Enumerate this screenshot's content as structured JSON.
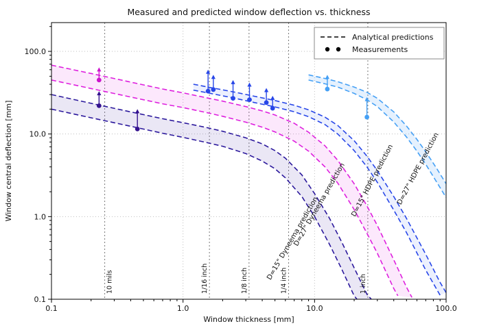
{
  "figure": {
    "title": "Measured and predicted window deflection vs. thickness",
    "xlabel": "Window thickness [mm]",
    "ylabel": "Window central deflection [mm]"
  },
  "chart_data": {
    "type": "line",
    "title": "Measured and predicted window deflection vs. thickness",
    "xlabel": "Window thickness [mm]",
    "ylabel": "Window central deflection [mm]",
    "x_scale": "log",
    "y_scale": "log",
    "xlim": [
      0.1,
      100
    ],
    "ylim": [
      0.1,
      223
    ],
    "grid": true,
    "x_ticks": [
      0.1,
      1,
      10,
      100
    ],
    "x_tick_labels": [
      "0.1",
      "1.0",
      "10.0",
      "100.0"
    ],
    "y_ticks": [
      0.1,
      1,
      10,
      100
    ],
    "y_tick_labels": [
      "0.1",
      "1.0",
      "10.0",
      "100.0"
    ],
    "legend": {
      "position": "upper-right",
      "entries": [
        {
          "label": "Analytical predictions",
          "type": "dashed-line"
        },
        {
          "label": "Measurements",
          "type": "dots"
        }
      ]
    },
    "bands": [
      {
        "name": "D=15\" Dyneema prediction",
        "color": "#2b189c",
        "fill": "rgba(125,105,190,0.16)",
        "label": {
          "x": 7.0,
          "y": 0.53,
          "angle": -60
        },
        "upper": [
          [
            0.1,
            30
          ],
          [
            0.2,
            23.5
          ],
          [
            0.4,
            18.5
          ],
          [
            0.7,
            15.3
          ],
          [
            1,
            13.7
          ],
          [
            1.5,
            12
          ],
          [
            2,
            10.8
          ],
          [
            3,
            9
          ],
          [
            4,
            7.6
          ],
          [
            5,
            6.3
          ],
          [
            6,
            5.1
          ],
          [
            8,
            3.2
          ],
          [
            10,
            1.9
          ],
          [
            13,
            0.95
          ],
          [
            16,
            0.5
          ],
          [
            20,
            0.24
          ],
          [
            25,
            0.115
          ],
          [
            27,
            0.1
          ]
        ],
        "lower": [
          [
            0.1,
            20
          ],
          [
            0.2,
            15.7
          ],
          [
            0.4,
            12.4
          ],
          [
            0.7,
            10.2
          ],
          [
            1,
            9.1
          ],
          [
            1.5,
            7.9
          ],
          [
            2,
            7.1
          ],
          [
            3,
            5.8
          ],
          [
            4,
            4.7
          ],
          [
            5,
            3.8
          ],
          [
            6,
            2.95
          ],
          [
            8,
            1.75
          ],
          [
            10,
            1
          ],
          [
            13,
            0.46
          ],
          [
            16,
            0.235
          ],
          [
            20,
            0.11
          ],
          [
            21,
            0.1
          ]
        ]
      },
      {
        "name": "D=27\" Dyneema prediction",
        "color": "#de1fde",
        "fill": "rgba(235,80,235,0.13)",
        "label": {
          "x": 11.2,
          "y": 1.36,
          "angle": -60
        },
        "upper": [
          [
            0.1,
            68
          ],
          [
            0.2,
            54
          ],
          [
            0.4,
            42.5
          ],
          [
            0.7,
            35
          ],
          [
            1,
            31.5
          ],
          [
            1.5,
            27.5
          ],
          [
            2,
            25
          ],
          [
            3,
            21.5
          ],
          [
            4,
            19
          ],
          [
            5,
            17
          ],
          [
            7,
            13.5
          ],
          [
            9,
            10.5
          ],
          [
            12,
            7.2
          ],
          [
            15,
            4.8
          ],
          [
            20,
            2.5
          ],
          [
            25,
            1.35
          ],
          [
            30,
            0.78
          ],
          [
            40,
            0.3
          ],
          [
            50,
            0.14
          ],
          [
            55,
            0.105
          ]
        ],
        "lower": [
          [
            0.1,
            45
          ],
          [
            0.2,
            35.5
          ],
          [
            0.4,
            28
          ],
          [
            0.7,
            23.2
          ],
          [
            1,
            20.9
          ],
          [
            1.5,
            18.2
          ],
          [
            2,
            16.4
          ],
          [
            3,
            13.9
          ],
          [
            4,
            12.1
          ],
          [
            5,
            10.6
          ],
          [
            7,
            8.2
          ],
          [
            9,
            6.2
          ],
          [
            12,
            4
          ],
          [
            15,
            2.55
          ],
          [
            20,
            1.22
          ],
          [
            25,
            0.63
          ],
          [
            30,
            0.36
          ],
          [
            40,
            0.135
          ],
          [
            43,
            0.11
          ]
        ]
      },
      {
        "name": "D=15\" HDPE prediction",
        "color": "#2746e8",
        "fill": "rgba(70,110,245,0.10)",
        "label": {
          "x": 28.3,
          "y": 2.66,
          "angle": -62
        },
        "upper": [
          [
            1.2,
            40
          ],
          [
            1.7,
            36
          ],
          [
            2.5,
            32
          ],
          [
            3.5,
            28.6
          ],
          [
            5,
            25.4
          ],
          [
            7,
            22.3
          ],
          [
            9,
            19.6
          ],
          [
            12,
            16
          ],
          [
            15,
            12.7
          ],
          [
            20,
            8.3
          ],
          [
            25,
            5.4
          ],
          [
            30,
            3.6
          ],
          [
            40,
            1.75
          ],
          [
            50,
            0.95
          ],
          [
            70,
            0.35
          ],
          [
            90,
            0.16
          ],
          [
            100,
            0.12
          ]
        ],
        "lower": [
          [
            1.2,
            34
          ],
          [
            1.7,
            30.5
          ],
          [
            2.5,
            27
          ],
          [
            3.5,
            24
          ],
          [
            5,
            21.3
          ],
          [
            7,
            18.6
          ],
          [
            9,
            16.2
          ],
          [
            12,
            13
          ],
          [
            15,
            10
          ],
          [
            20,
            6.3
          ],
          [
            25,
            4
          ],
          [
            30,
            2.6
          ],
          [
            40,
            1.2
          ],
          [
            50,
            0.64
          ],
          [
            70,
            0.225
          ],
          [
            90,
            0.112
          ]
        ]
      },
      {
        "name": "D=27\" HDPE prediction",
        "color": "#45a0f5",
        "fill": "rgba(110,175,250,0.18)",
        "label": {
          "x": 63,
          "y": 3.7,
          "angle": -62
        },
        "upper": [
          [
            9,
            52
          ],
          [
            12,
            47
          ],
          [
            15,
            43
          ],
          [
            20,
            37
          ],
          [
            25,
            32
          ],
          [
            30,
            27
          ],
          [
            40,
            18.5
          ],
          [
            50,
            12.5
          ],
          [
            60,
            8.6
          ],
          [
            70,
            6.1
          ],
          [
            85,
            3.8
          ],
          [
            100,
            2.5
          ]
        ],
        "lower": [
          [
            9,
            45
          ],
          [
            12,
            40.5
          ],
          [
            15,
            37
          ],
          [
            20,
            31
          ],
          [
            25,
            26
          ],
          [
            30,
            21.5
          ],
          [
            40,
            14
          ],
          [
            50,
            9.2
          ],
          [
            60,
            6.2
          ],
          [
            70,
            4.3
          ],
          [
            85,
            2.6
          ],
          [
            100,
            1.7
          ]
        ]
      }
    ],
    "measurements": [
      {
        "name": "dyneema-15-measurements",
        "color": "#35128f",
        "points": [
          {
            "x": 0.23,
            "y": 22,
            "ymax": 33
          },
          {
            "x": 0.45,
            "y": 11.5,
            "ymax": 20
          }
        ]
      },
      {
        "name": "dyneema-27-measurements",
        "color": "#cc14cc",
        "points": [
          {
            "x": 0.23,
            "y": 45,
            "ymax": 64
          }
        ]
      },
      {
        "name": "hdpe-15-measurements",
        "color": "#2746e8",
        "points": [
          {
            "x": 1.55,
            "y": 33,
            "ymax": 60
          },
          {
            "x": 1.7,
            "y": 34.5,
            "ymax": 52
          },
          {
            "x": 2.4,
            "y": 27,
            "ymax": 45
          },
          {
            "x": 3.2,
            "y": 26,
            "ymax": 42
          },
          {
            "x": 4.3,
            "y": 24,
            "ymax": 36
          },
          {
            "x": 4.8,
            "y": 20.5,
            "ymax": 29
          }
        ]
      },
      {
        "name": "hdpe-27-measurements",
        "color": "#45a0f5",
        "points": [
          {
            "x": 12.5,
            "y": 35,
            "ymax": 52
          },
          {
            "x": 25,
            "y": 16,
            "ymax": 28
          }
        ]
      }
    ],
    "thickness_markers": [
      {
        "label": "10 mils",
        "x": 0.254,
        "side": "right"
      },
      {
        "label": "1/16 inch",
        "x": 1.5875,
        "side": "left"
      },
      {
        "label": "1/8 inch",
        "x": 3.175,
        "side": "left"
      },
      {
        "label": "1/4 inch",
        "x": 6.35,
        "side": "left"
      },
      {
        "label": "1 inch",
        "x": 25.4,
        "side": "left"
      }
    ]
  }
}
